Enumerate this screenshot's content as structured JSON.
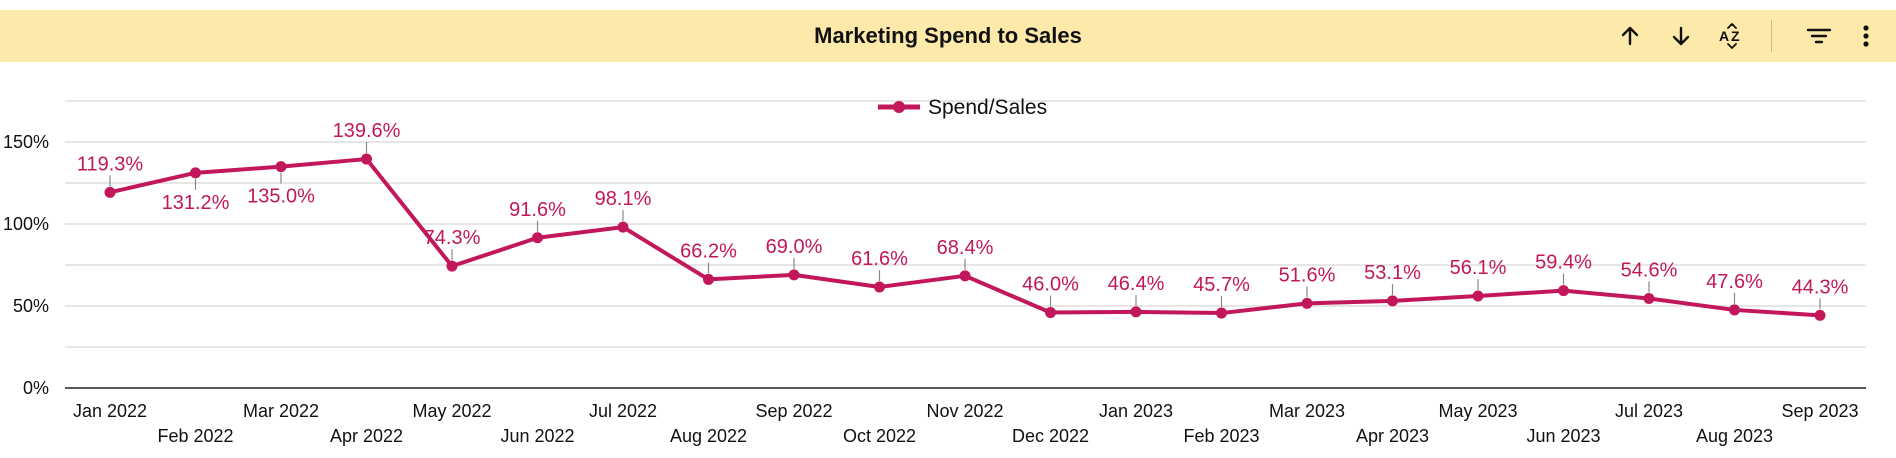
{
  "header": {
    "title": "Marketing Spend to Sales",
    "tools": [
      {
        "name": "sort-ascending-icon"
      },
      {
        "name": "sort-descending-icon"
      },
      {
        "name": "sort-az-icon"
      },
      {
        "name": "filter-icon"
      },
      {
        "name": "more-options-icon"
      }
    ]
  },
  "colors": {
    "header_bg": "#fdeaaa",
    "series": "#c2185b",
    "grid": "#d6d6d6",
    "axis_text": "#111111"
  },
  "chart_data": {
    "type": "line",
    "title": "Marketing Spend to Sales",
    "legend": {
      "position": "top-center"
    },
    "categories": [
      "Jan 2022",
      "Feb 2022",
      "Mar 2022",
      "Apr 2022",
      "May 2022",
      "Jun 2022",
      "Jul 2022",
      "Aug 2022",
      "Sep 2022",
      "Oct 2022",
      "Nov 2022",
      "Dec 2022",
      "Jan 2023",
      "Feb 2023",
      "Mar 2023",
      "Apr 2023",
      "May 2023",
      "Jun 2023",
      "Jul 2023",
      "Aug 2023",
      "Sep 2023"
    ],
    "series": [
      {
        "name": "Spend/Sales",
        "values": [
          119.3,
          131.2,
          135.0,
          139.6,
          74.3,
          91.6,
          98.1,
          66.2,
          69.0,
          61.6,
          68.4,
          46.0,
          46.4,
          45.7,
          51.6,
          53.1,
          56.1,
          59.4,
          54.6,
          47.6,
          44.3
        ],
        "labels": [
          "119.3%",
          "131.2%",
          "135.0%",
          "139.6%",
          "74.3%",
          "91.6%",
          "98.1%",
          "66.2%",
          "69.0%",
          "61.6%",
          "68.4%",
          "46.0%",
          "46.4%",
          "45.7%",
          "51.6%",
          "53.1%",
          "56.1%",
          "59.4%",
          "54.6%",
          "47.6%",
          "44.3%"
        ]
      }
    ],
    "y_ticks": [
      {
        "value": 0,
        "label": "0%"
      },
      {
        "value": 50,
        "label": "50%"
      },
      {
        "value": 100,
        "label": "100%"
      },
      {
        "value": 150,
        "label": "150%"
      }
    ],
    "ylim": [
      0,
      175
    ],
    "grid": true
  }
}
